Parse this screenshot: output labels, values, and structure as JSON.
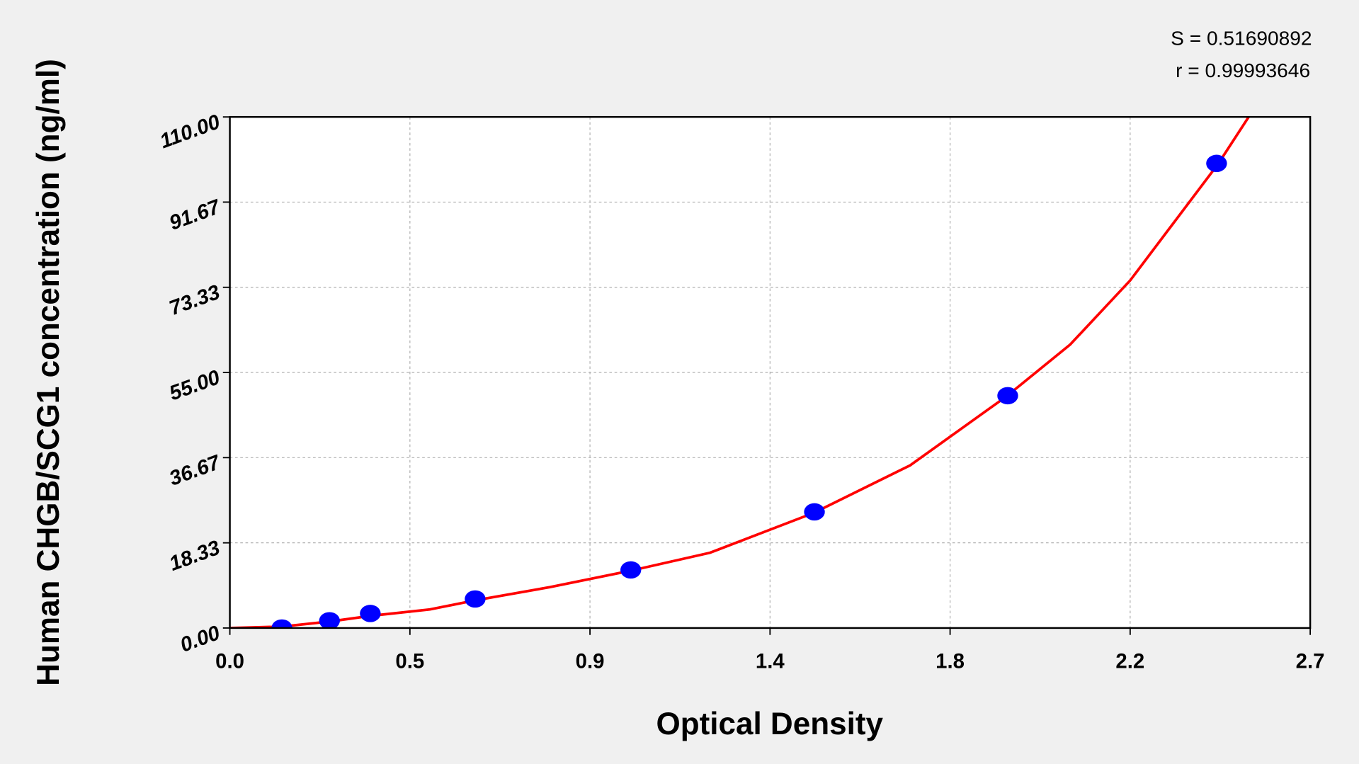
{
  "chart_data": {
    "type": "scatter",
    "x_label": "Optical Density",
    "y_label": "Human CHGB/SCG1 concentration (ng/ml)",
    "annotations": [
      "S = 0.51690892",
      "r = 0.99993646"
    ],
    "xlim": [
      0,
      2.7
    ],
    "xticks": [
      {
        "value": 0,
        "label": "0.0"
      },
      {
        "value": 0.45,
        "label": "0.5"
      },
      {
        "value": 0.9,
        "label": "0.9"
      },
      {
        "value": 1.35,
        "label": "1.4"
      },
      {
        "value": 1.8,
        "label": "1.8"
      },
      {
        "value": 2.25,
        "label": "2.2"
      },
      2.7
    ],
    "ylim": [
      0,
      110
    ],
    "yticks": [
      {
        "value": 0,
        "label": "0.00"
      },
      18.33,
      36.67,
      {
        "value": 55,
        "label": "55.00"
      },
      73.33,
      91.67,
      {
        "value": 110,
        "label": "110.00"
      }
    ],
    "grid": true,
    "series": [
      {
        "mode": "markers",
        "color": "#0000ff",
        "x": [
          0.13,
          0.249,
          0.351,
          0.613,
          1.002,
          1.461,
          1.944,
          2.466
        ],
        "values": [
          0,
          1.56,
          3.13,
          6.25,
          12.5,
          25,
          50,
          100
        ]
      },
      {
        "mode": "line",
        "color": "#ff0000",
        "x": [
          0,
          0.13,
          0.25,
          0.35,
          0.5,
          0.61,
          0.8,
          1.0,
          1.2,
          1.46,
          1.7,
          1.94,
          2.1,
          2.25,
          2.47,
          2.55
        ],
        "values": [
          0,
          0.3,
          1.4,
          2.6,
          4.0,
          5.9,
          8.8,
          12.3,
          16.2,
          24.8,
          35.0,
          49.8,
          61.0,
          74.8,
          99.9,
          110.5
        ]
      }
    ]
  }
}
